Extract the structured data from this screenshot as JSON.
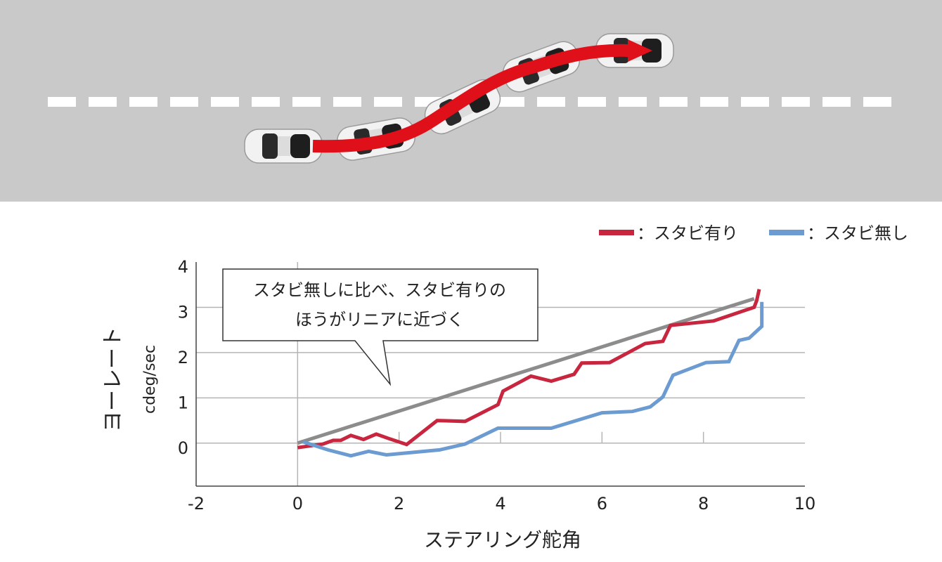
{
  "chart_data": {
    "type": "line",
    "annotation": [
      "スタビ無しに比べ、スタビ有りの",
      "ほうがリニアに近づく"
    ],
    "x_label": "ステアリング舵角",
    "y_label": "ヨーレート",
    "y_unit": "cdeg/sec",
    "xlim": [
      -2,
      10
    ],
    "xticks": [
      -2,
      0,
      2,
      4,
      6,
      8,
      10
    ],
    "ylim": [
      -0.95,
      4
    ],
    "yticks": [
      0,
      1,
      2,
      3,
      4
    ],
    "grid": true,
    "series": [
      {
        "color": "#8c8c8c",
        "x": [
          0,
          9.0
        ],
        "values": [
          0,
          3.19
        ]
      },
      {
        "name": "：スタビ有り",
        "color": "#c8253f",
        "x": [
          0,
          0.5,
          0.7,
          0.85,
          1.05,
          1.3,
          1.55,
          1.8,
          2.15,
          2.75,
          3.3,
          3.95,
          4.05,
          4.6,
          5.0,
          5.45,
          5.6,
          6.15,
          6.85,
          7.2,
          7.35,
          8.2,
          9.0,
          9.05,
          9.1
        ],
        "values": [
          -0.1,
          -0.02,
          0.06,
          0.06,
          0.17,
          0.08,
          0.2,
          0.1,
          -0.03,
          0.5,
          0.48,
          0.85,
          1.15,
          1.48,
          1.37,
          1.52,
          1.77,
          1.78,
          2.2,
          2.25,
          2.6,
          2.7,
          3.0,
          3.15,
          3.4
        ]
      },
      {
        "name": "：スタビ無し",
        "color": "#6b9bd1",
        "x": [
          0.1,
          0.6,
          1.05,
          1.4,
          1.75,
          2.8,
          3.3,
          3.95,
          5.0,
          6.0,
          6.6,
          6.95,
          7.2,
          7.4,
          8.05,
          8.5,
          8.7,
          8.9,
          9.15,
          9.15
        ],
        "values": [
          0.03,
          -0.15,
          -0.28,
          -0.18,
          -0.26,
          -0.15,
          -0.02,
          0.33,
          0.33,
          0.67,
          0.7,
          0.8,
          1.02,
          1.5,
          1.78,
          1.8,
          2.27,
          2.32,
          2.58,
          3.12
        ]
      }
    ]
  }
}
